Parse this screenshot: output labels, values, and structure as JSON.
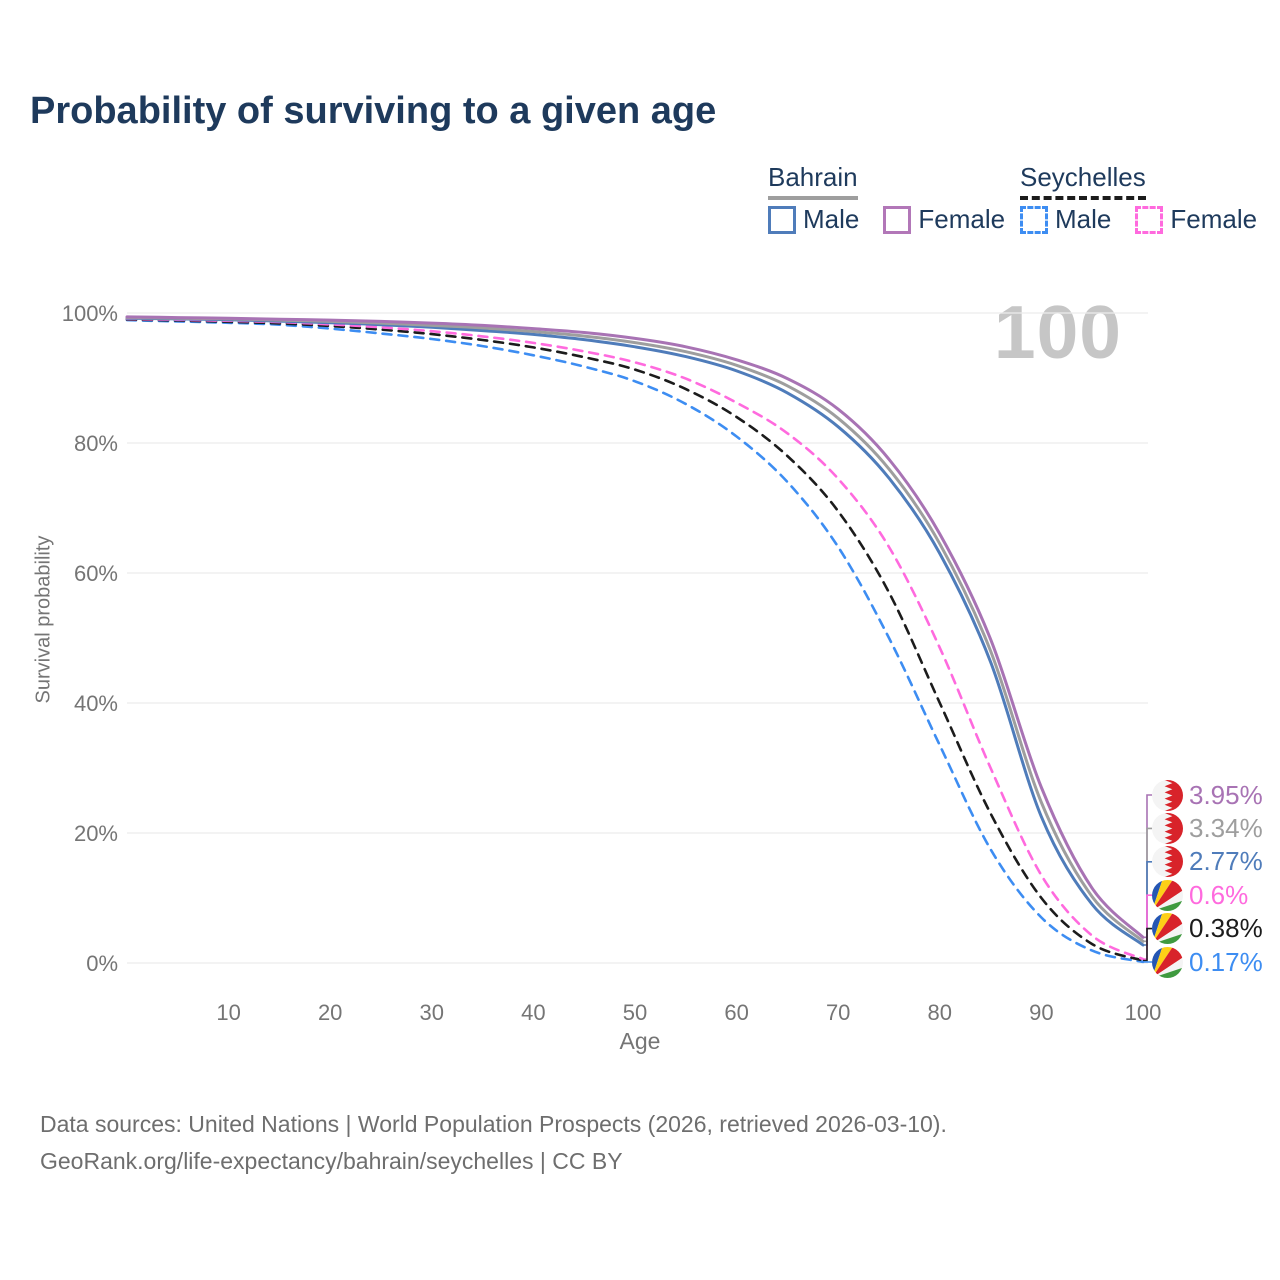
{
  "page": {
    "title": "Probability of surviving to a given age"
  },
  "watermark": "100",
  "legend": {
    "groups": [
      {
        "id": "bahrain",
        "label": "Bahrain",
        "line_style": "solid",
        "line_color": "#9e9e9e",
        "items": [
          {
            "label": "Male",
            "color": "#4f7cba",
            "style": "solid"
          },
          {
            "label": "Female",
            "color": "#b277b8",
            "style": "solid"
          }
        ]
      },
      {
        "id": "seychelles",
        "label": "Seychelles",
        "line_style": "dashed",
        "line_color": "#1c1c1c",
        "items": [
          {
            "label": "Male",
            "color": "#3d8df2",
            "style": "dashed"
          },
          {
            "label": "Female",
            "color": "#ff6ade",
            "style": "dashed"
          }
        ]
      }
    ]
  },
  "chart_data": {
    "type": "line",
    "title": "Probability of surviving to a given age",
    "xlabel": "Age",
    "ylabel": "Survival probability",
    "xlim": [
      0,
      100
    ],
    "ylim": [
      0,
      100
    ],
    "grid": "horizontal",
    "x_ticks": [
      {
        "value": 10,
        "label": "10"
      },
      {
        "value": 20,
        "label": "20"
      },
      {
        "value": 30,
        "label": "30"
      },
      {
        "value": 40,
        "label": "40"
      },
      {
        "value": 50,
        "label": "50"
      },
      {
        "value": 60,
        "label": "60"
      },
      {
        "value": 70,
        "label": "70"
      },
      {
        "value": 80,
        "label": "80"
      },
      {
        "value": 90,
        "label": "90"
      },
      {
        "value": 100,
        "label": "100"
      }
    ],
    "y_ticks": [
      {
        "value": 100,
        "label": "100%"
      },
      {
        "value": 80,
        "label": "80%"
      },
      {
        "value": 60,
        "label": "60%"
      },
      {
        "value": 40,
        "label": "40%"
      },
      {
        "value": 20,
        "label": "20%"
      },
      {
        "value": 0,
        "label": "0%"
      }
    ],
    "x": [
      0,
      5,
      10,
      15,
      20,
      25,
      30,
      35,
      40,
      45,
      50,
      55,
      60,
      65,
      70,
      75,
      80,
      85,
      90,
      95,
      100
    ],
    "series": [
      {
        "id": "bahrain-female",
        "name": "Bahrain Female",
        "color": "#a873b4",
        "dash": "solid",
        "flag": "bahrain-flag-icon",
        "end_label": "3.95%",
        "values": [
          99.4,
          99.3,
          99.2,
          99.05,
          98.9,
          98.7,
          98.45,
          98.1,
          97.6,
          97.0,
          96.1,
          94.8,
          92.8,
          89.9,
          85.2,
          77.5,
          66.0,
          49.8,
          27.0,
          11.5,
          3.95
        ]
      },
      {
        "id": "bahrain-total",
        "name": "Bahrain",
        "color": "#9e9e9e",
        "dash": "solid",
        "flag": "bahrain-flag-icon",
        "end_label": "3.34%",
        "values": [
          99.3,
          99.2,
          99.1,
          98.9,
          98.7,
          98.45,
          98.1,
          97.7,
          97.15,
          96.45,
          95.45,
          94.05,
          91.95,
          88.8,
          83.8,
          76.0,
          64.5,
          48.0,
          24.7,
          10.2,
          3.34
        ]
      },
      {
        "id": "bahrain-male",
        "name": "Bahrain Male",
        "color": "#4f7cba",
        "dash": "solid",
        "flag": "bahrain-flag-icon",
        "end_label": "2.77%",
        "values": [
          99.2,
          99.1,
          98.95,
          98.75,
          98.5,
          98.2,
          97.8,
          97.3,
          96.7,
          95.9,
          94.8,
          93.3,
          91.1,
          87.7,
          82.5,
          74.6,
          63.0,
          46.3,
          22.5,
          9.0,
          2.77
        ]
      },
      {
        "id": "seychelles-female",
        "name": "Seychelles Female",
        "color": "#ff6ade",
        "dash": "dashed",
        "flag": "seychelles-flag-icon",
        "end_label": "0.6%",
        "values": [
          99.1,
          98.95,
          98.8,
          98.6,
          98.25,
          97.8,
          97.2,
          96.4,
          95.4,
          94.1,
          92.4,
          89.9,
          86.2,
          81.5,
          74.5,
          64.0,
          48.5,
          30.0,
          13.5,
          4.2,
          0.6
        ]
      },
      {
        "id": "seychelles-total",
        "name": "Seychelles",
        "color": "#1c1c1c",
        "dash": "dashed",
        "flag": "seychelles-flag-icon",
        "end_label": "0.38%",
        "values": [
          99.0,
          98.85,
          98.65,
          98.4,
          98.0,
          97.45,
          96.75,
          95.85,
          94.7,
          93.2,
          91.3,
          88.3,
          84.0,
          78.0,
          69.5,
          57.0,
          40.0,
          23.0,
          10.0,
          2.9,
          0.38
        ]
      },
      {
        "id": "seychelles-male",
        "name": "Seychelles Male",
        "color": "#3d8df2",
        "dash": "dashed",
        "flag": "seychelles-flag-icon",
        "end_label": "0.17%",
        "values": [
          98.9,
          98.7,
          98.5,
          98.2,
          97.6,
          96.85,
          96.0,
          94.9,
          93.5,
          91.75,
          89.5,
          86.0,
          81.0,
          74.0,
          64.0,
          50.0,
          33.5,
          17.5,
          7.0,
          1.9,
          0.17
        ]
      }
    ]
  },
  "footer": {
    "line1": "Data sources: United Nations | World Population Prospects (2026, retrieved 2026-03-10).",
    "line2": "GeoRank.org/life-expectancy/bahrain/seychelles | CC BY"
  }
}
